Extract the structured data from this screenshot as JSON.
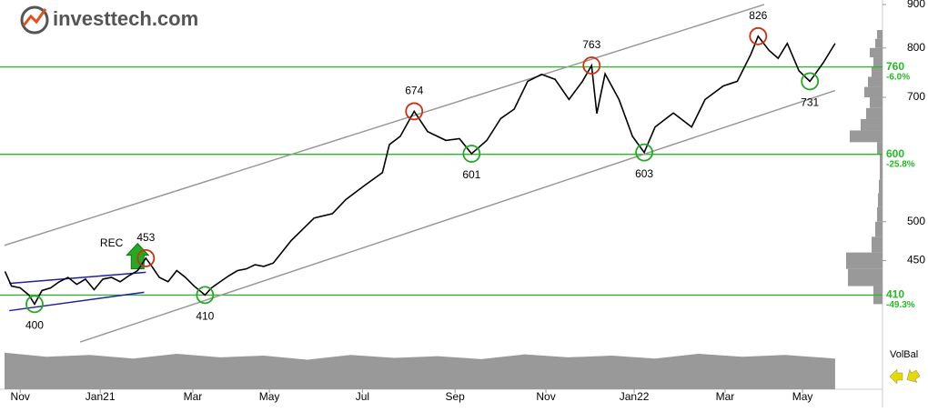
{
  "chart_data": {
    "type": "line",
    "logo": "investtech.com",
    "log_scale": true,
    "xlim": [
      -0.36,
      19.83
    ],
    "ylim": [
      324,
      911
    ],
    "xticks": [
      {
        "value": 0,
        "label": "Nov"
      },
      {
        "value": 1.84,
        "label": "Jan21"
      },
      {
        "value": 3.97,
        "label": "Mar"
      },
      {
        "value": 5.73,
        "label": "May"
      },
      {
        "value": 7.87,
        "label": "Jul"
      },
      {
        "value": 10.0,
        "label": "Sep"
      },
      {
        "value": 12.09,
        "label": "Nov"
      },
      {
        "value": 14.12,
        "label": "Jan22"
      },
      {
        "value": 16.21,
        "label": "Mar"
      },
      {
        "value": 17.99,
        "label": "May"
      }
    ],
    "yticks": [
      450,
      500,
      700,
      800,
      900
    ],
    "series": [
      {
        "color": "#000000",
        "x": [
          -0.35,
          -0.2,
          0.0,
          0.2,
          0.33,
          0.5,
          0.7,
          0.9,
          1.1,
          1.3,
          1.5,
          1.7,
          1.9,
          2.1,
          2.3,
          2.5,
          2.7,
          2.89,
          3.0,
          3.2,
          3.4,
          3.6,
          3.8,
          4.0,
          4.25,
          4.4,
          4.6,
          4.8,
          5.0,
          5.2,
          5.4,
          5.6,
          5.82,
          6.23,
          6.76,
          7.18,
          7.49,
          7.91,
          8.33,
          8.49,
          8.74,
          9.06,
          9.37,
          9.79,
          10.1,
          10.38,
          10.73,
          11.05,
          11.36,
          11.67,
          11.99,
          12.3,
          12.62,
          12.93,
          13.14,
          13.26,
          13.45,
          13.77,
          14.08,
          14.35,
          14.6,
          15.02,
          15.44,
          15.75,
          16.17,
          16.49,
          16.8,
          16.97,
          17.22,
          17.43,
          17.64,
          17.91,
          18.16,
          18.47,
          18.74
        ],
        "values": [
          437,
          420,
          418,
          410,
          400,
          415,
          418,
          425,
          430,
          422,
          428,
          416,
          428,
          430,
          425,
          432,
          438,
          453,
          445,
          430,
          425,
          438,
          430,
          420,
          410,
          418,
          425,
          432,
          438,
          440,
          445,
          443,
          447,
          475,
          505,
          511,
          531,
          551,
          571,
          616,
          630,
          674,
          638,
          623,
          626,
          601,
          623,
          661,
          678,
          731,
          745,
          735,
          696,
          731,
          763,
          670,
          746,
          696,
          630,
          603,
          646,
          671,
          646,
          696,
          722,
          731,
          786,
          826,
          795,
          778,
          810,
          752,
          731,
          769,
          810
        ]
      }
    ],
    "trendlines": [
      {
        "color": "#999999",
        "x": [
          -0.36,
          17.11
        ],
        "values": [
          469,
          900
        ]
      },
      {
        "color": "#999999",
        "x": [
          1.38,
          18.74
        ],
        "values": [
          361,
          713
        ]
      },
      {
        "color": "#2020a0",
        "x": [
          -0.25,
          2.85
        ],
        "values": [
          393,
          413
        ]
      },
      {
        "color": "#2020a0",
        "x": [
          -0.25,
          2.89
        ],
        "values": [
          423,
          436
        ]
      }
    ],
    "annotations": [
      {
        "x": 0.33,
        "value": 400,
        "color": "#22aa22"
      },
      {
        "x": 2.89,
        "value": 453,
        "color": "#d03010"
      },
      {
        "x": 4.25,
        "value": 410,
        "color": "#22aa22"
      },
      {
        "x": 9.06,
        "value": 674,
        "color": "#d03010"
      },
      {
        "x": 10.38,
        "value": 601,
        "color": "#22aa22"
      },
      {
        "x": 13.14,
        "value": 763,
        "color": "#d03010"
      },
      {
        "x": 14.35,
        "value": 603,
        "color": "#22aa22"
      },
      {
        "x": 16.97,
        "value": 826,
        "color": "#d03010"
      },
      {
        "x": 18.16,
        "value": 731,
        "color": "#22aa22"
      }
    ],
    "signal": {
      "label": "REC",
      "x": 2.7,
      "value": 440,
      "color": "#22aa22"
    },
    "support_lines": [
      {
        "value": 760,
        "change": "-6.0%",
        "color": "#22bb22"
      },
      {
        "value": 600,
        "change": "-25.8%",
        "color": "#22bb22"
      },
      {
        "value": 410,
        "change": "-49.3%",
        "color": "#22bb22"
      }
    ],
    "volume": {
      "color": "#999999",
      "x": [
        -0.36,
        0.6,
        1.6,
        2.6,
        3.6,
        4.6,
        5.6,
        6.6,
        7.6,
        8.6,
        9.6,
        10.6,
        11.6,
        12.6,
        13.6,
        14.6,
        15.6,
        16.6,
        17.6,
        18.74
      ],
      "values": [
        62,
        55,
        58,
        52,
        60,
        54,
        57,
        50,
        58,
        53,
        56,
        51,
        59,
        54,
        57,
        52,
        60,
        55,
        58,
        52
      ]
    },
    "volume_profile": {
      "color": "#999999",
      "levels": [
        400,
        420,
        440,
        460,
        480,
        500,
        520,
        540,
        560,
        580,
        600,
        620,
        640,
        660,
        680,
        700,
        720,
        740,
        760,
        780,
        800,
        820,
        840
      ],
      "values": [
        10,
        38,
        40,
        12,
        8,
        6,
        5,
        4,
        3,
        3,
        6,
        36,
        24,
        18,
        14,
        20,
        16,
        12,
        10,
        14,
        8,
        6
      ]
    },
    "indicator": "VolBal"
  }
}
